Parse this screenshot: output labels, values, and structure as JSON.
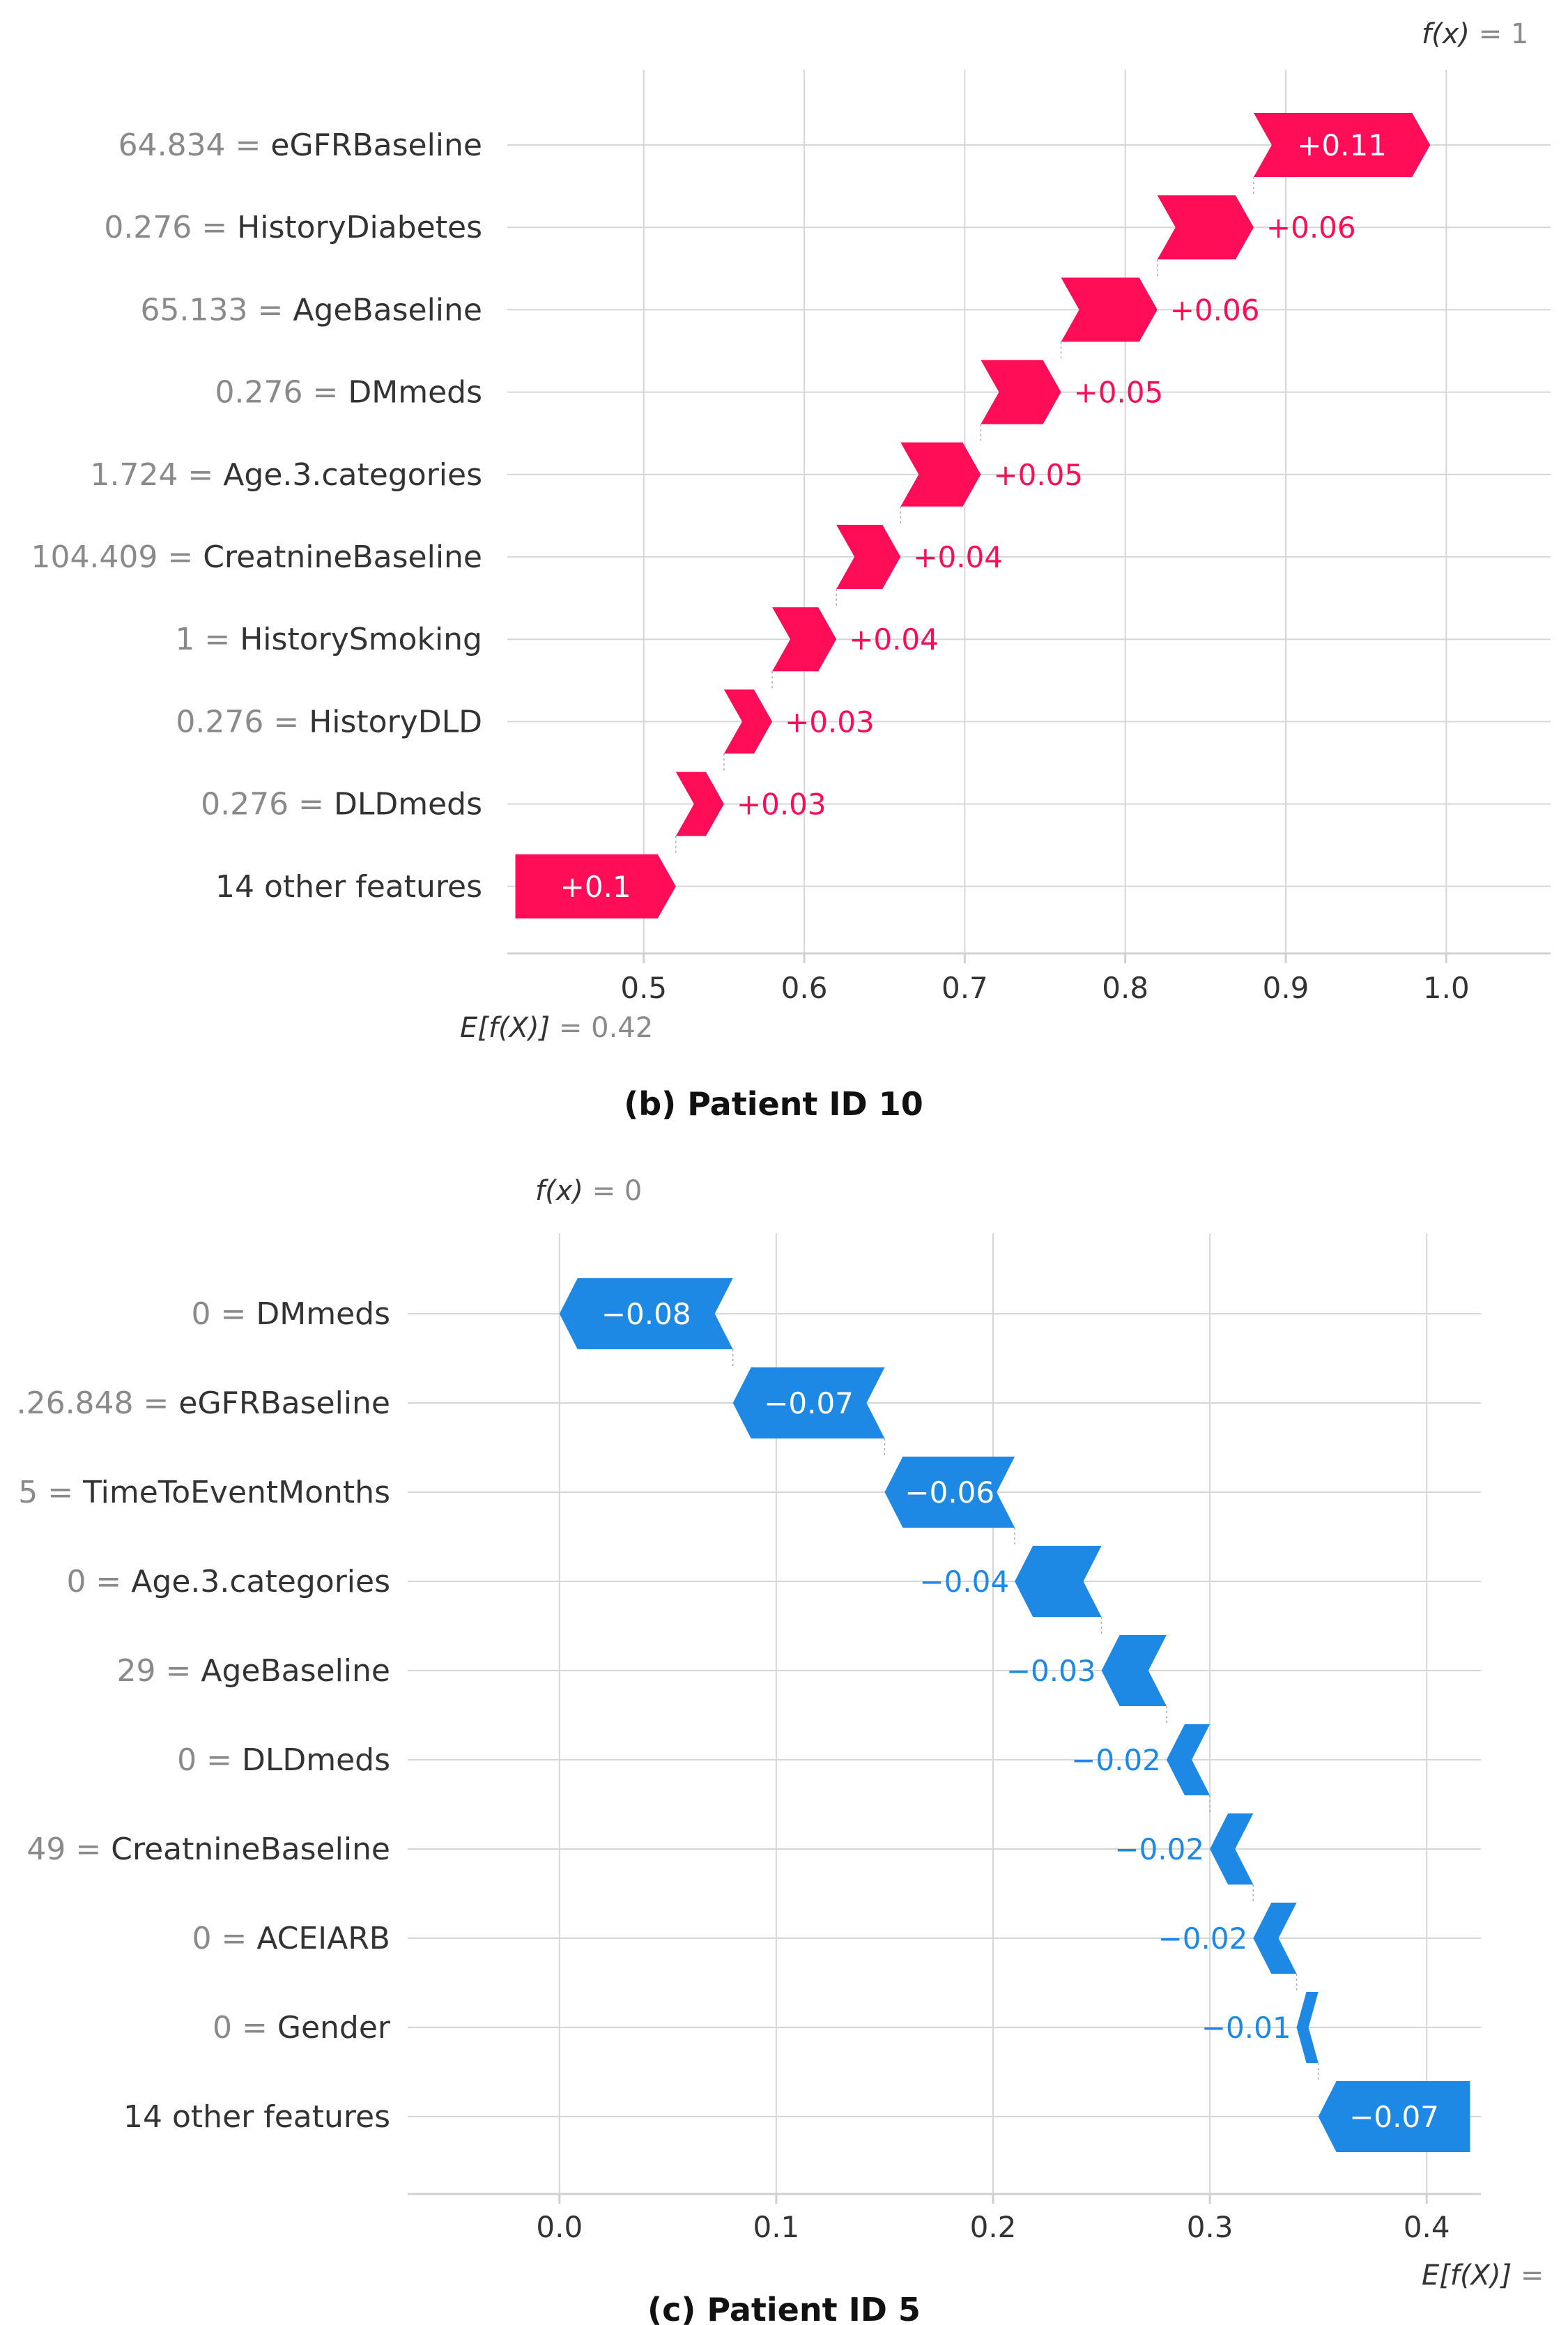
{
  "colors": {
    "positive": "#ff0d57",
    "negative": "#1e88e5",
    "grid": "#d6d6d6",
    "axis": "#d0d0d0",
    "text": "#333333",
    "value_text": "#8a8a8a",
    "white": "#ffffff"
  },
  "chart_data": [
    {
      "type": "waterfall",
      "panel": "b",
      "caption": "(b) Patient ID 10",
      "fx_label": "f(x)",
      "fx_value": "= 1",
      "efx_label": "E[f(X)]",
      "efx_value": "= 0.42",
      "base_value": 0.42,
      "final_value": 1.0,
      "xlim": [
        0.415,
        1.065
      ],
      "xticks": [
        0.5,
        0.6,
        0.7,
        0.8,
        0.9,
        1.0
      ],
      "xtick_labels": [
        "0.5",
        "0.6",
        "0.7",
        "0.8",
        "0.9",
        "1.0"
      ],
      "rows": [
        {
          "value": "64.834",
          "feature": "eGFRBaseline",
          "contribution": 0.11,
          "label": "+0.11"
        },
        {
          "value": "0.276",
          "feature": "HistoryDiabetes",
          "contribution": 0.06,
          "label": "+0.06"
        },
        {
          "value": "65.133",
          "feature": "AgeBaseline",
          "contribution": 0.06,
          "label": "+0.06"
        },
        {
          "value": "0.276",
          "feature": "DMmeds",
          "contribution": 0.05,
          "label": "+0.05"
        },
        {
          "value": "1.724",
          "feature": "Age.3.categories",
          "contribution": 0.05,
          "label": "+0.05"
        },
        {
          "value": "104.409",
          "feature": "CreatnineBaseline",
          "contribution": 0.04,
          "label": "+0.04"
        },
        {
          "value": "1",
          "feature": "HistorySmoking",
          "contribution": 0.04,
          "label": "+0.04"
        },
        {
          "value": "0.276",
          "feature": "HistoryDLD",
          "contribution": 0.03,
          "label": "+0.03"
        },
        {
          "value": "0.276",
          "feature": "DLDmeds",
          "contribution": 0.03,
          "label": "+0.03"
        },
        {
          "value": "",
          "feature": "14 other features",
          "contribution": 0.1,
          "label": "+0.1"
        }
      ]
    },
    {
      "type": "waterfall",
      "panel": "c",
      "caption": "(c) Patient ID 5",
      "fx_label": "f(x)",
      "fx_value": "= 0",
      "efx_label": "E[f(X)]",
      "efx_value": "=",
      "base_value": 0.42,
      "final_value": 0.0,
      "xlim": [
        -0.07,
        0.425
      ],
      "xticks": [
        0.0,
        0.1,
        0.2,
        0.3,
        0.4
      ],
      "xtick_labels": [
        "0.0",
        "0.1",
        "0.2",
        "0.3",
        "0.4"
      ],
      "rows": [
        {
          "value": "0",
          "feature": "DMmeds",
          "contribution": -0.08,
          "label": "−0.08"
        },
        {
          "value": ".26.848",
          "feature": "eGFRBaseline",
          "contribution": -0.07,
          "label": "−0.07"
        },
        {
          "value": "5",
          "feature": "TimeToEventMonths",
          "contribution": -0.06,
          "label": "−0.06"
        },
        {
          "value": "0",
          "feature": "Age.3.categories",
          "contribution": -0.04,
          "label": "−0.04"
        },
        {
          "value": "29",
          "feature": "AgeBaseline",
          "contribution": -0.03,
          "label": "−0.03"
        },
        {
          "value": "0",
          "feature": "DLDmeds",
          "contribution": -0.02,
          "label": "−0.02"
        },
        {
          "value": "49",
          "feature": "CreatnineBaseline",
          "contribution": -0.02,
          "label": "−0.02"
        },
        {
          "value": "0",
          "feature": "ACEIARB",
          "contribution": -0.02,
          "label": "−0.02"
        },
        {
          "value": "0",
          "feature": "Gender",
          "contribution": -0.01,
          "label": "−0.01"
        },
        {
          "value": "",
          "feature": "14 other features",
          "contribution": -0.07,
          "label": "−0.07"
        }
      ]
    }
  ]
}
